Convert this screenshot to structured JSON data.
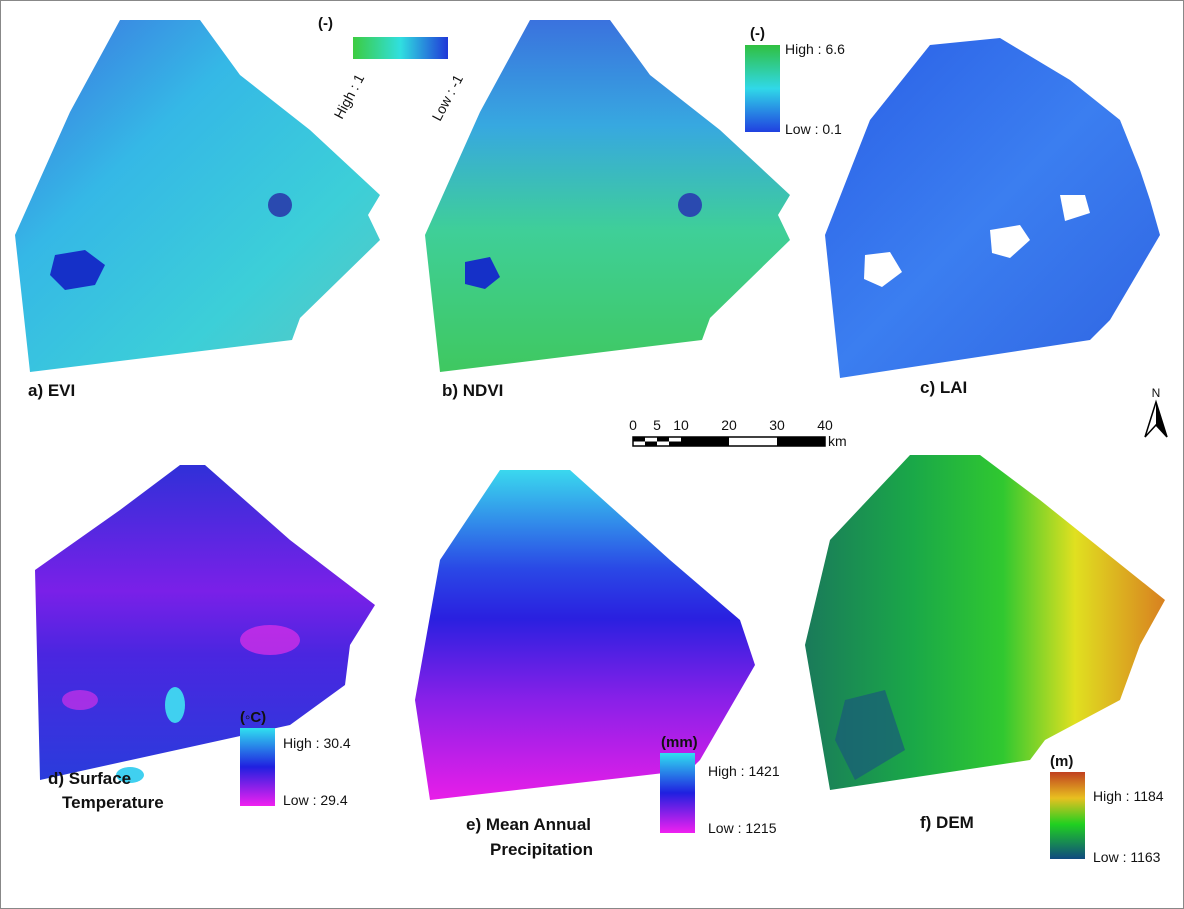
{
  "panels": [
    {
      "label": [
        "a) EVI"
      ],
      "legend": {
        "unit": "(-)",
        "high": "High : 1",
        "low": "Low : -1"
      }
    },
    {
      "label": [
        "b) NDVI"
      ]
    },
    {
      "label": [
        "c) LAI"
      ],
      "legend": {
        "unit": "(-)",
        "high": "High : 6.6",
        "low": "Low : 0.1"
      }
    },
    {
      "label": [
        "d) Surface",
        "Temperature"
      ],
      "legend": {
        "unit": "(◦C)",
        "high": "High : 30.4",
        "low": "Low : 29.4"
      }
    },
    {
      "label": [
        "e) Mean Annual",
        "Precipitation"
      ],
      "legend": {
        "unit": "(mm)",
        "high": "High : 1421",
        "low": "Low : 1215"
      }
    },
    {
      "label": [
        "f) DEM"
      ],
      "legend": {
        "unit": "(m)",
        "high": "High : 1184",
        "low": "Low : 1163"
      }
    }
  ],
  "scale_bar": {
    "labels": [
      "0",
      "5",
      "10",
      "20",
      "30",
      "40"
    ],
    "unit": "km"
  },
  "north": "N"
}
